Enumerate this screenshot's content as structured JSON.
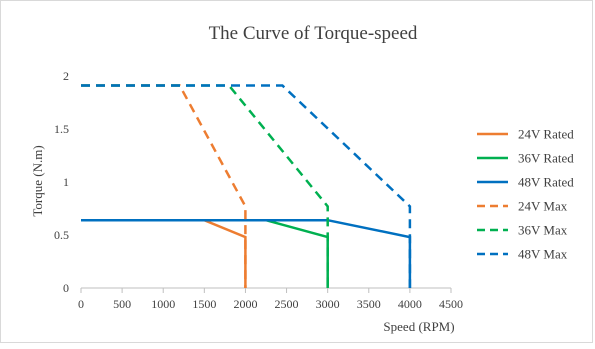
{
  "chart_data": {
    "type": "line",
    "title": "The Curve of Torque-speed",
    "xlabel": "Speed (RPM)",
    "ylabel": "Torque (N.m)",
    "xlim": [
      0,
      4500
    ],
    "ylim": [
      0,
      2
    ],
    "x_ticks": [
      0,
      500,
      1000,
      1500,
      2000,
      2500,
      3000,
      3500,
      4000,
      4500
    ],
    "y_ticks": [
      0,
      0.5,
      1,
      1.5,
      2
    ],
    "y_tick_labels": [
      "0",
      "0.5",
      "1",
      "1.5",
      "2"
    ],
    "grid": false,
    "legend_position": "right",
    "series": [
      {
        "name": "24V Rated",
        "color": "#ED7D31",
        "dash": "solid",
        "points": [
          [
            0,
            0.64
          ],
          [
            1500,
            0.64
          ],
          [
            2000,
            0.48
          ],
          [
            2000,
            0
          ]
        ]
      },
      {
        "name": "36V Rated",
        "color": "#00B050",
        "dash": "solid",
        "points": [
          [
            0,
            0.64
          ],
          [
            2250,
            0.64
          ],
          [
            3000,
            0.48
          ],
          [
            3000,
            0
          ]
        ]
      },
      {
        "name": "48V Rated",
        "color": "#0070C0",
        "dash": "solid",
        "points": [
          [
            0,
            0.64
          ],
          [
            3000,
            0.64
          ],
          [
            4000,
            0.48
          ],
          [
            4000,
            0
          ]
        ]
      },
      {
        "name": "24V Max",
        "color": "#ED7D31",
        "dash": "dashed",
        "points": [
          [
            0,
            1.91
          ],
          [
            1200,
            1.91
          ],
          [
            2000,
            0.77
          ],
          [
            2000,
            0
          ]
        ]
      },
      {
        "name": "36V Max",
        "color": "#00B050",
        "dash": "dashed",
        "points": [
          [
            0,
            1.91
          ],
          [
            1800,
            1.91
          ],
          [
            3000,
            0.77
          ],
          [
            3000,
            0
          ]
        ]
      },
      {
        "name": "48V Max",
        "color": "#0070C0",
        "dash": "dashed",
        "points": [
          [
            0,
            1.91
          ],
          [
            2450,
            1.91
          ],
          [
            4000,
            0.77
          ],
          [
            4000,
            0
          ]
        ]
      }
    ]
  }
}
